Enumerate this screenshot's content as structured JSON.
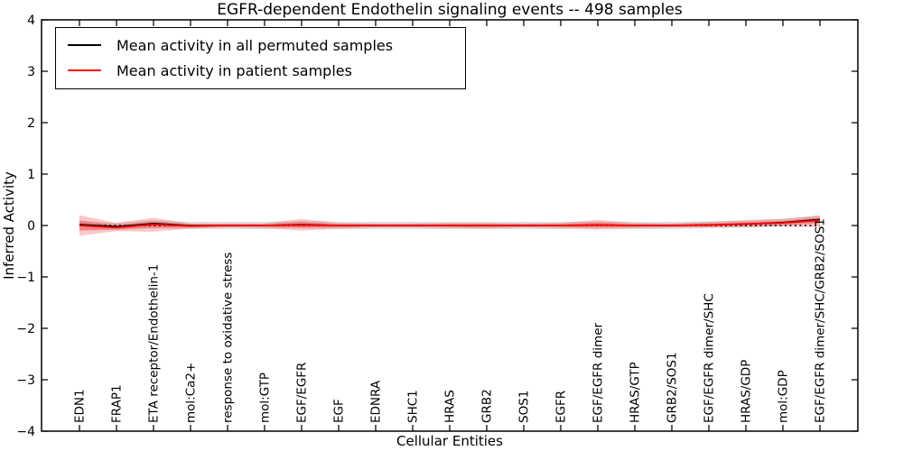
{
  "chart_data": {
    "type": "line",
    "title": "EGFR-dependent Endothelin signaling events -- 498 samples",
    "xlabel": "Cellular Entities",
    "ylabel": "Inferred Activity",
    "ylim": [
      -4,
      4
    ],
    "yticks": [
      4,
      3,
      2,
      1,
      0,
      -1,
      -2,
      -3,
      -4
    ],
    "ytick_labels": [
      "4",
      "3",
      "2",
      "1",
      "0",
      "−1",
      "−2",
      "−3",
      "−4"
    ],
    "grid": false,
    "legend_position": "upper left",
    "reference_line_y": 0,
    "x_categories": [
      "EDN1",
      "FRAP1",
      "ETA receptor/Endothelin-1",
      "mol:Ca2+",
      "response to oxidative stress",
      "mol:GTP",
      "EGF/EGFR",
      "EGF",
      "EDNRA",
      "SHC1",
      "HRAS",
      "GRB2",
      "SOS1",
      "EGFR",
      "EGF/EGFR dimer",
      "HRAS/GTP",
      "GRB2/SOS1",
      "EGF/EGFR dimer/SHC",
      "HRAS/GDP",
      "mol:GDP",
      "EGF/EGFR dimer/SHC/GRB2/SOS1"
    ],
    "legend": [
      {
        "label": "Mean activity in all permuted samples",
        "color": "#000000"
      },
      {
        "label": "Mean activity in patient samples",
        "color": "#ff0000"
      }
    ],
    "series": [
      {
        "name": "Mean activity in all permuted samples",
        "color": "#000000",
        "width": 1.4,
        "values": [
          0.02,
          -0.02,
          0.04,
          0.0,
          0.0,
          0.0,
          0.02,
          0.0,
          0.0,
          0.0,
          0.0,
          0.0,
          0.0,
          0.0,
          0.01,
          0.0,
          0.0,
          0.01,
          0.03,
          0.06,
          0.12
        ]
      },
      {
        "name": "Mean activity in patient samples",
        "color": "#ff0000",
        "width": 1.8,
        "values": [
          0.0,
          -0.04,
          0.02,
          -0.01,
          0.0,
          0.0,
          0.01,
          0.0,
          0.0,
          0.0,
          0.0,
          0.0,
          0.0,
          0.0,
          0.01,
          0.0,
          0.0,
          0.01,
          0.03,
          0.05,
          0.1
        ]
      }
    ],
    "bands": [
      {
        "name": "permuted-sample-range",
        "color": "rgba(0,0,0,0.13)",
        "upper": [
          0.09,
          0.05,
          0.1,
          0.07,
          0.07,
          0.07,
          0.09,
          0.07,
          0.07,
          0.07,
          0.07,
          0.07,
          0.07,
          0.07,
          0.08,
          0.07,
          0.07,
          0.08,
          0.1,
          0.13,
          0.19
        ],
        "lower": [
          -0.09,
          -0.09,
          -0.05,
          -0.07,
          -0.07,
          -0.07,
          -0.05,
          -0.07,
          -0.07,
          -0.07,
          -0.07,
          -0.07,
          -0.07,
          -0.07,
          -0.06,
          -0.07,
          -0.07,
          -0.05,
          -0.04,
          -0.01,
          0.05
        ]
      },
      {
        "name": "patient-sample-range",
        "color": "rgba(255,0,0,0.22)",
        "upper": [
          0.2,
          0.05,
          0.15,
          0.04,
          0.04,
          0.04,
          0.13,
          0.05,
          0.04,
          0.04,
          0.05,
          0.05,
          0.04,
          0.05,
          0.11,
          0.05,
          0.04,
          0.07,
          0.1,
          0.13,
          0.2
        ],
        "lower": [
          -0.2,
          -0.11,
          -0.12,
          -0.06,
          -0.04,
          -0.05,
          -0.1,
          -0.06,
          -0.04,
          -0.04,
          -0.05,
          -0.06,
          -0.04,
          -0.05,
          -0.08,
          -0.05,
          -0.04,
          -0.04,
          -0.03,
          -0.02,
          -0.03
        ]
      }
    ]
  }
}
